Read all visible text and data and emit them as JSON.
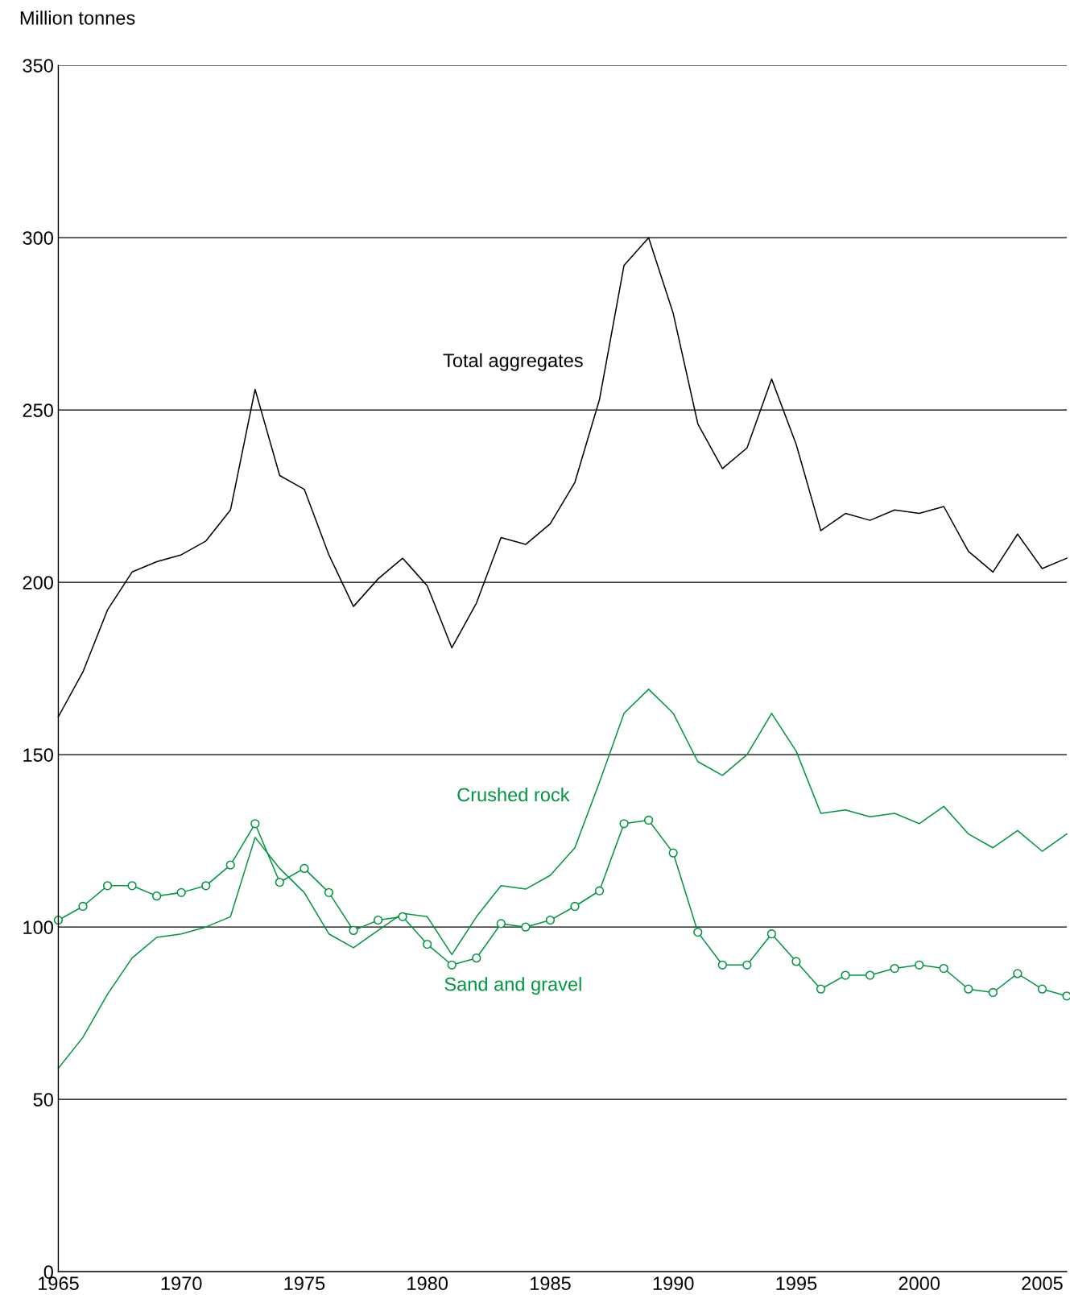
{
  "chart_data": {
    "type": "line",
    "ylabel": "Million tonnes",
    "x": [
      1965,
      1966,
      1967,
      1968,
      1969,
      1970,
      1971,
      1972,
      1973,
      1974,
      1975,
      1976,
      1977,
      1978,
      1979,
      1980,
      1981,
      1982,
      1983,
      1984,
      1985,
      1986,
      1987,
      1988,
      1989,
      1990,
      1991,
      1992,
      1993,
      1994,
      1995,
      1996,
      1997,
      1998,
      1999,
      2000,
      2001,
      2002,
      2003,
      2004,
      2005,
      2006
    ],
    "series": [
      {
        "name": "Total aggregates",
        "color": "#000000",
        "marker": "none",
        "values": [
          161,
          174,
          192,
          203,
          206,
          208,
          212,
          221,
          256,
          231,
          227,
          208,
          193,
          201,
          207,
          199,
          181,
          194,
          213,
          211,
          217,
          229,
          253,
          292,
          300,
          278,
          246,
          233,
          239,
          259,
          240,
          215,
          220,
          218,
          221,
          220,
          222,
          209,
          203,
          214,
          204,
          207
        ]
      },
      {
        "name": "Crushed rock",
        "color": "#009640",
        "marker": "none",
        "values": [
          59,
          68,
          80.5,
          91,
          97,
          98,
          100,
          103,
          126,
          117,
          110,
          98,
          94,
          99,
          104,
          103,
          92,
          103,
          112,
          111,
          115,
          123,
          142,
          162,
          169,
          162,
          148,
          144,
          150,
          162,
          151,
          133,
          134,
          132,
          133,
          130,
          135,
          127,
          123,
          128,
          122,
          127
        ]
      },
      {
        "name": "Sand and gravel",
        "color": "#009640",
        "marker": "circle",
        "values": [
          102,
          106,
          112,
          112,
          109,
          110,
          112,
          118,
          130,
          113,
          117,
          110,
          99,
          102,
          103,
          95,
          89,
          91,
          101,
          100,
          102,
          106,
          110.5,
          130,
          131,
          121.5,
          98.5,
          89,
          89,
          98,
          90,
          82,
          86,
          86,
          88,
          89,
          88,
          82,
          81,
          86.5,
          82,
          80
        ]
      }
    ],
    "xlim": [
      1965,
      2006
    ],
    "xticks": [
      1965,
      1970,
      1975,
      1980,
      1985,
      1990,
      1995,
      2000,
      2005
    ],
    "ylim": [
      0,
      350
    ],
    "yticks": [
      0,
      50,
      100,
      150,
      200,
      250,
      300,
      350
    ],
    "grid": "y",
    "line_style": "solid"
  }
}
